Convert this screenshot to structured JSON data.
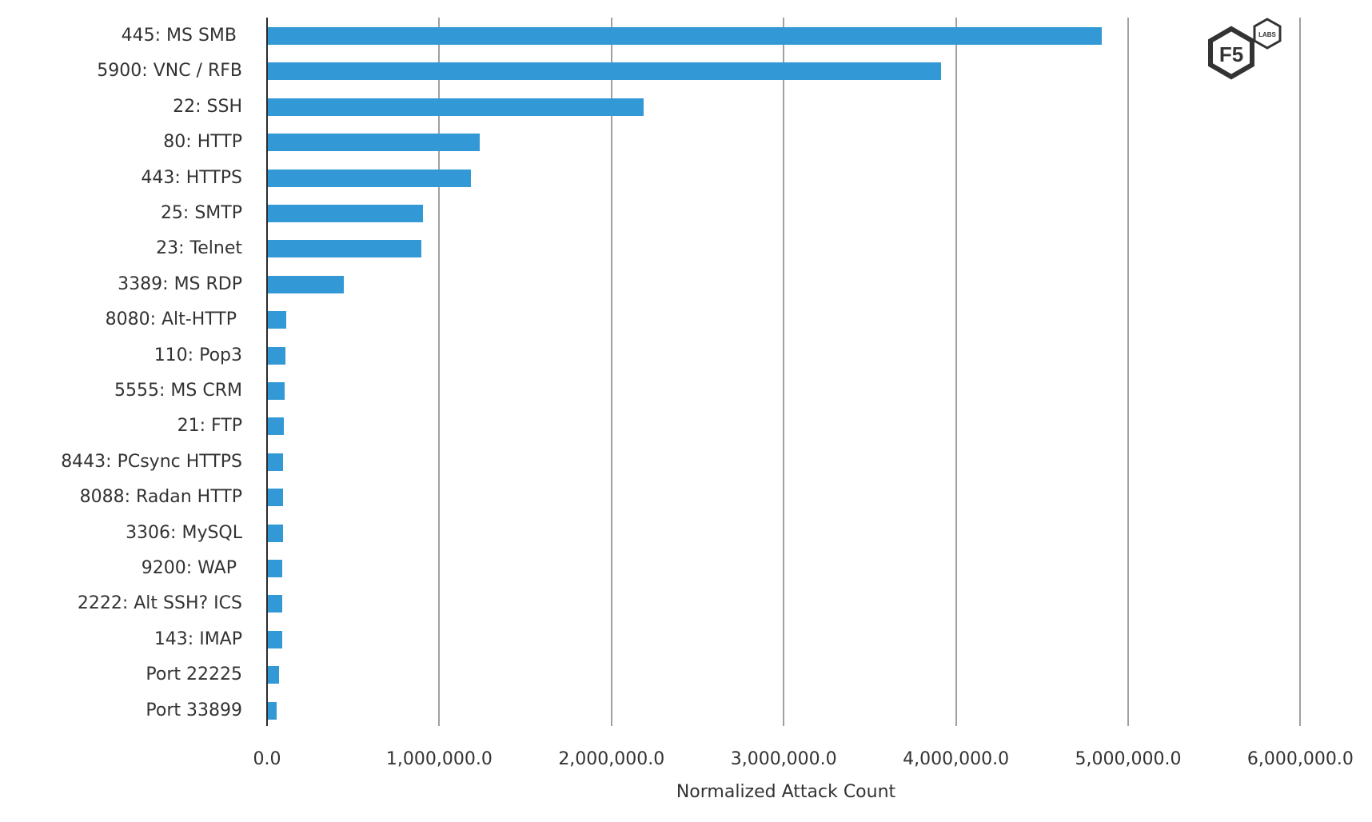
{
  "chart_data": {
    "type": "bar",
    "orientation": "horizontal",
    "title": "",
    "xlabel": "Normalized Attack Count",
    "ylabel": "",
    "xlim": [
      0,
      6000000
    ],
    "x_ticks": [
      "0.0",
      "1,000,000.0",
      "2,000,000.0",
      "3,000,000.0",
      "4,000,000.0",
      "5,000,000.0",
      "6,000,000.0"
    ],
    "grid": "vertical",
    "legend": "none",
    "bar_color": "#3399d6",
    "categories": [
      "445: MS SMB ",
      "5900: VNC / RFB",
      "22: SSH",
      "80: HTTP",
      "443: HTTPS",
      "25: SMTP",
      "23: Telnet",
      "3389: MS RDP",
      "8080: Alt-HTTP ",
      "110: Pop3",
      "5555: MS CRM",
      "21: FTP",
      "8443: PCsync HTTPS",
      "8088: Radan HTTP",
      "3306: MySQL",
      "9200: WAP ",
      "2222: Alt SSH? ICS",
      "143: IMAP",
      "Port 22225",
      "Port 33899"
    ],
    "values": [
      4840000,
      3910000,
      2180000,
      1230000,
      1180000,
      900000,
      890000,
      440000,
      107000,
      102000,
      98000,
      93000,
      88000,
      88000,
      88000,
      84000,
      84000,
      84000,
      65000,
      51000
    ]
  },
  "logo": {
    "main": "F5",
    "badge": "LABS"
  }
}
